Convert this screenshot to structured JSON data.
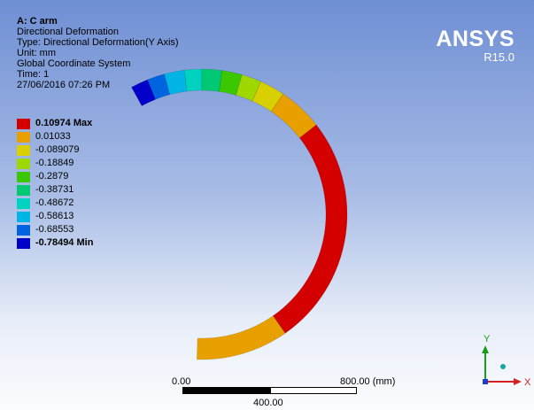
{
  "info": {
    "title": "A: C arm",
    "lines": [
      "Directional Deformation",
      "Type: Directional Deformation(Y Axis)",
      "Unit: mm",
      "Global Coordinate System",
      "Time: 1",
      "27/06/2016 07:26 PM"
    ]
  },
  "legend": [
    {
      "label": "0.10974 Max",
      "color": "#d40000"
    },
    {
      "label": "0.01033",
      "color": "#e8a000"
    },
    {
      "label": "-0.089079",
      "color": "#d8d000"
    },
    {
      "label": "-0.18849",
      "color": "#9ed800"
    },
    {
      "label": "-0.2879",
      "color": "#3cc800"
    },
    {
      "label": "-0.38731",
      "color": "#00c873"
    },
    {
      "label": "-0.48672",
      "color": "#00d2c0"
    },
    {
      "label": "-0.58613",
      "color": "#00b4e6"
    },
    {
      "label": "-0.68553",
      "color": "#0064e1"
    },
    {
      "label": "-0.78494 Min",
      "color": "#0000c8"
    }
  ],
  "brand": {
    "logo": "ANSYS",
    "version": "R15.0"
  },
  "scale": {
    "left": "0.00",
    "right": "800.00 (mm)",
    "mid": "400.00"
  },
  "triad": {
    "y": "Y",
    "x": "X"
  }
}
